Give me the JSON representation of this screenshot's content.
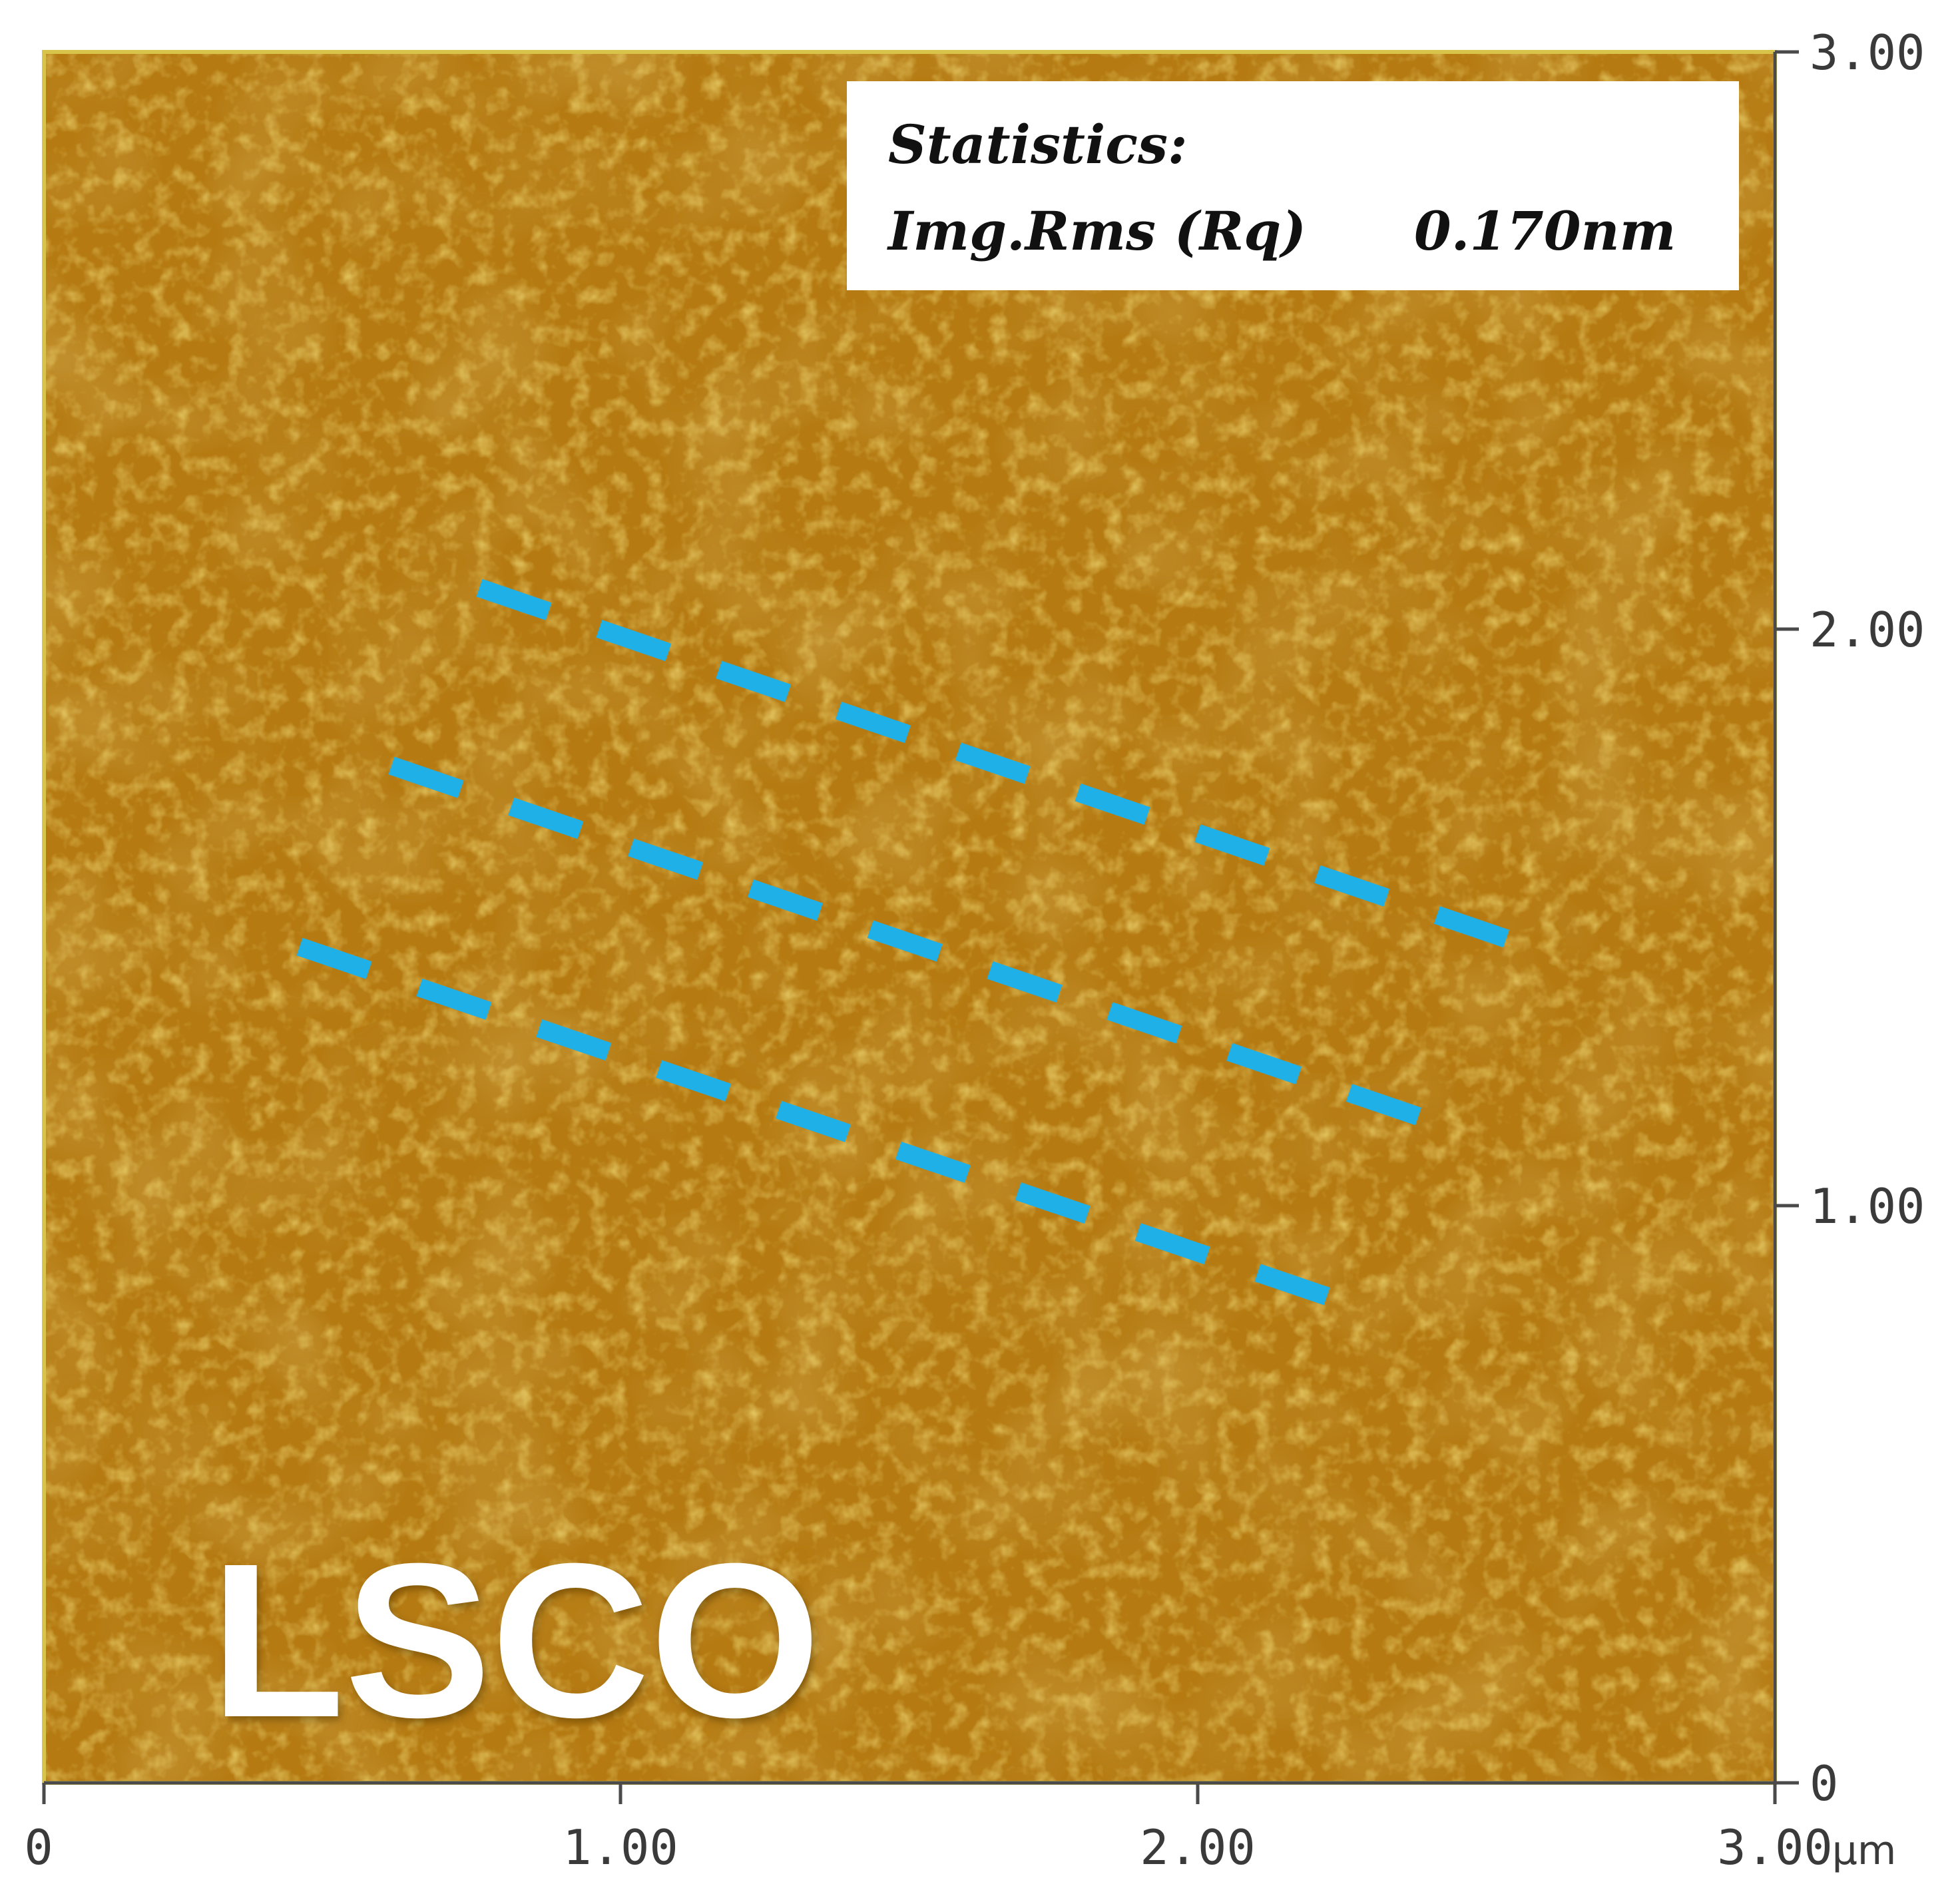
{
  "image": {
    "kind": "afm-topography",
    "sample_label": "LSCO",
    "colors": {
      "surface_base": "#b57a12",
      "surface_dark": "#9a5a0c",
      "surface_light": "#d7a62a",
      "frame": "#d8c44a",
      "dash_lines": "#1fb0e8",
      "stats_box": "#ffffff"
    }
  },
  "statistics": {
    "heading": "Statistics:",
    "label": "Img.Rms (Rq)",
    "value": "0.170nm"
  },
  "x_axis": {
    "ticks": [
      "0",
      "1.00",
      "2.00",
      "3.00"
    ],
    "unit": "µm"
  },
  "y_axis": {
    "ticks": [
      "0",
      "1.00",
      "2.00",
      "3.00"
    ]
  },
  "overlay": {
    "description_icon": "dashed-line-icon",
    "dashed_line_count": 3
  }
}
